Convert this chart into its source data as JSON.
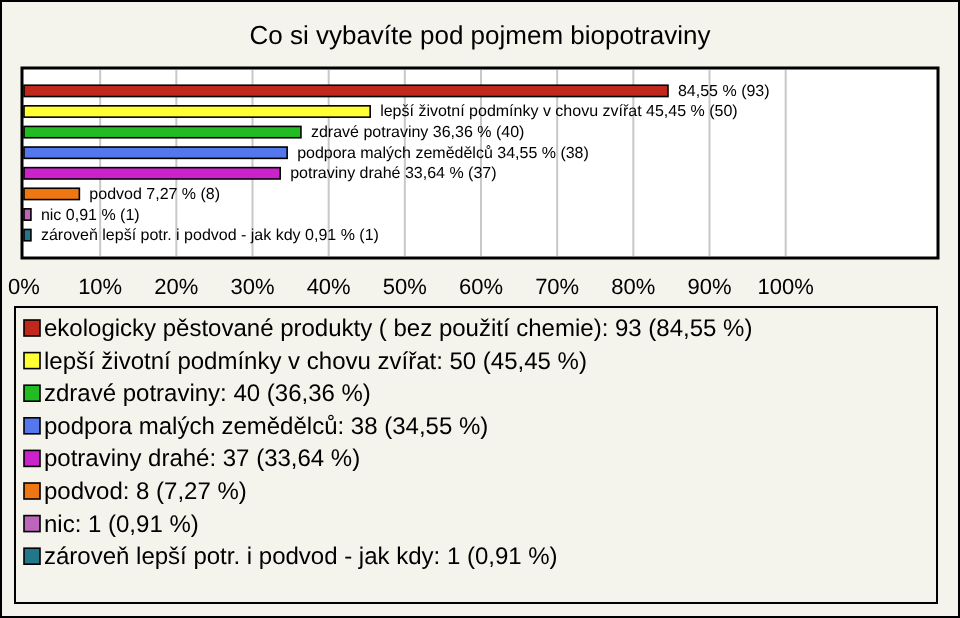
{
  "chart_data": {
    "type": "bar",
    "orientation": "horizontal",
    "title": "Co si vybavíte pod pojmem biopotraviny",
    "categories": [
      null
    ],
    "series": [
      {
        "name": "ekologicky pěstované produkty ( bez použití chemie): 93 (84,55 %)",
        "color": "#c0281c",
        "values": [
          84.55
        ],
        "value_labels": [
          "84,55 % (93)"
        ]
      },
      {
        "name": "lepší životní podmínky v chovu zvířat: 50 (45,45 %)",
        "color": "#ffff33",
        "values": [
          45.45
        ],
        "value_labels": [
          "lepší životní podmínky v chovu zvířat 45,45 % (50)"
        ]
      },
      {
        "name": "zdravé potraviny: 40 (36,36 %)",
        "color": "#22bb22",
        "values": [
          36.36
        ],
        "value_labels": [
          "zdravé potraviny 36,36 % (40)"
        ]
      },
      {
        "name": "podpora malých zemědělců: 38 (34,55 %)",
        "color": "#5577ee",
        "values": [
          34.55
        ],
        "value_labels": [
          "podpora malých zemědělců 34,55 % (38)"
        ]
      },
      {
        "name": "potraviny drahé: 37 (33,64 %)",
        "color": "#cc22cc",
        "values": [
          33.64
        ],
        "value_labels": [
          "potraviny drahé 33,64 % (37)"
        ]
      },
      {
        "name": "podvod: 8 (7,27 %)",
        "color": "#ee7711",
        "values": [
          7.27
        ],
        "value_labels": [
          "podvod 7,27 % (8)"
        ]
      },
      {
        "name": "nic: 1 (0,91 %)",
        "color": "#bb66bb",
        "values": [
          0.91
        ],
        "value_labels": [
          "nic 0,91 % (1)"
        ]
      },
      {
        "name": "zároveň lepší potr. i podvod - jak kdy: 1 (0,91 %)",
        "color": "#227788",
        "values": [
          0.91
        ],
        "value_labels": [
          "zároveň lepší potr. i podvod - jak kdy 0,91 % (1)"
        ]
      }
    ],
    "xlim": [
      0,
      120
    ],
    "xticks": [
      {
        "value": 0,
        "label": "0%"
      },
      {
        "value": 10,
        "label": "10%"
      },
      {
        "value": 20,
        "label": "20%"
      },
      {
        "value": 30,
        "label": "30%"
      },
      {
        "value": 40,
        "label": "40%"
      },
      {
        "value": 50,
        "label": "50%"
      },
      {
        "value": 60,
        "label": "60%"
      },
      {
        "value": 70,
        "label": "70%"
      },
      {
        "value": 80,
        "label": "80%"
      },
      {
        "value": 90,
        "label": "90%"
      },
      {
        "value": 100,
        "label": "100%"
      }
    ],
    "grid": "x",
    "legend": "bottom"
  }
}
